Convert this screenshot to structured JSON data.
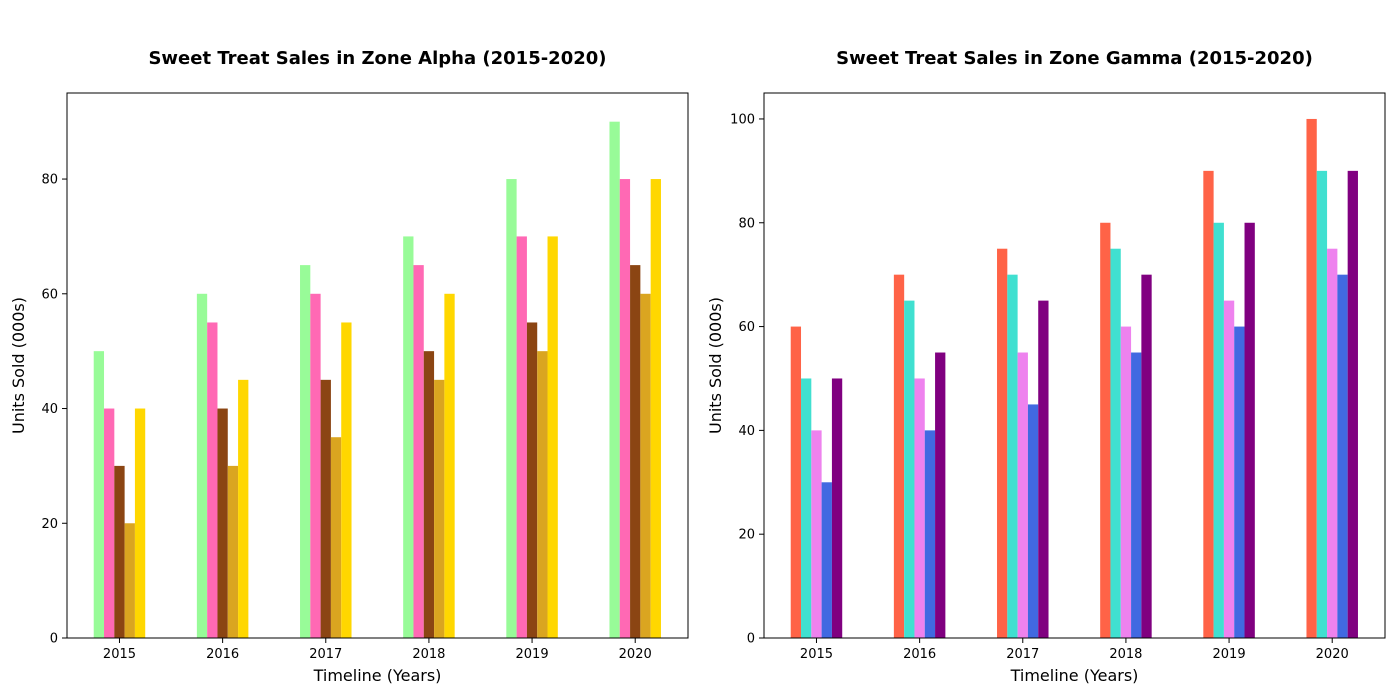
{
  "chart_data": [
    {
      "type": "bar",
      "title": "Sweet Treat Sales in Zone Alpha (2015-2020)",
      "xlabel": "Timeline (Years)",
      "ylabel": "Units Sold (000s)",
      "ylim": [
        0,
        95
      ],
      "yticks": [
        0,
        20,
        40,
        60,
        80
      ],
      "grid": false,
      "categories": [
        "2015",
        "2016",
        "2017",
        "2018",
        "2019",
        "2020"
      ],
      "series": [
        {
          "color": "#98fb98",
          "values": [
            50,
            60,
            65,
            70,
            80,
            90
          ]
        },
        {
          "color": "#ff69b4",
          "values": [
            40,
            55,
            60,
            65,
            70,
            80
          ]
        },
        {
          "color": "#8b4513",
          "values": [
            30,
            40,
            45,
            50,
            55,
            65
          ]
        },
        {
          "color": "#daa520",
          "values": [
            20,
            30,
            35,
            45,
            50,
            60
          ]
        },
        {
          "color": "#ffd700",
          "values": [
            40,
            45,
            55,
            60,
            70,
            80
          ]
        }
      ]
    },
    {
      "type": "bar",
      "title": "Sweet Treat Sales in Zone Gamma (2015-2020)",
      "xlabel": "Timeline (Years)",
      "ylabel": "Units Sold (000s)",
      "ylim": [
        0,
        105
      ],
      "yticks": [
        0,
        20,
        40,
        60,
        80,
        100
      ],
      "grid": false,
      "categories": [
        "2015",
        "2016",
        "2017",
        "2018",
        "2019",
        "2020"
      ],
      "series": [
        {
          "color": "#ff6347",
          "values": [
            60,
            70,
            75,
            80,
            90,
            100
          ]
        },
        {
          "color": "#40e0d0",
          "values": [
            50,
            65,
            70,
            75,
            80,
            90
          ]
        },
        {
          "color": "#ee82ee",
          "values": [
            40,
            50,
            55,
            60,
            65,
            75
          ]
        },
        {
          "color": "#4169e1",
          "values": [
            30,
            40,
            45,
            55,
            60,
            70
          ]
        },
        {
          "color": "#800080",
          "values": [
            50,
            55,
            65,
            70,
            80,
            90
          ]
        }
      ]
    }
  ]
}
